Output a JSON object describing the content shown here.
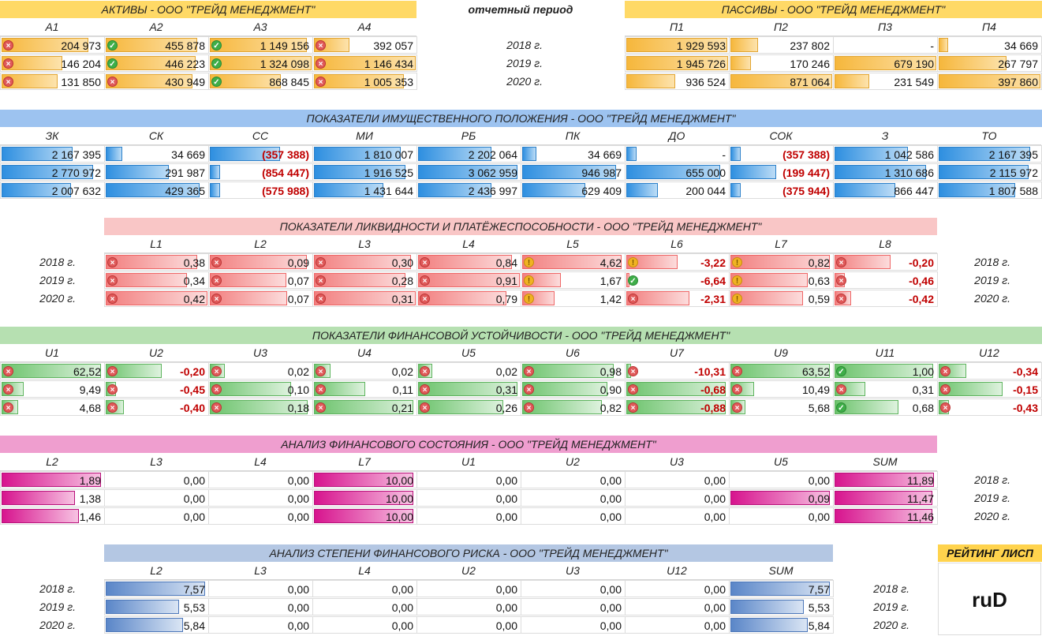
{
  "period_label": "отчетный период",
  "years": [
    "2018 г.",
    "2019 г.",
    "2020 г."
  ],
  "assets": {
    "title": "АКТИВЫ - ООО \"ТРЕЙД МЕНЕДЖМЕНТ\"",
    "headers": [
      "А1",
      "А2",
      "А3",
      "А4"
    ],
    "rows": [
      [
        {
          "v": "204 973",
          "f": 0.85,
          "i": "x"
        },
        {
          "v": "455 878",
          "f": 0.9,
          "i": "ok"
        },
        {
          "v": "1 149 156",
          "f": 0.95,
          "i": "ok"
        },
        {
          "v": "392 057",
          "f": 0.35,
          "i": "x"
        }
      ],
      [
        {
          "v": "146 204",
          "f": 0.6,
          "i": "x"
        },
        {
          "v": "446 223",
          "f": 0.88,
          "i": "ok"
        },
        {
          "v": "1 324 098",
          "f": 1.0,
          "i": "ok"
        },
        {
          "v": "1 146 434",
          "f": 1.0,
          "i": "x"
        }
      ],
      [
        {
          "v": "131 850",
          "f": 0.55,
          "i": "x"
        },
        {
          "v": "430 949",
          "f": 0.85,
          "i": "x"
        },
        {
          "v": "868 845",
          "f": 0.7,
          "i": "ok"
        },
        {
          "v": "1 005 353",
          "f": 0.88,
          "i": "x"
        }
      ]
    ]
  },
  "liabilities": {
    "title": "ПАССИВЫ - ООО \"ТРЕЙД МЕНЕДЖМЕНТ\"",
    "headers": [
      "П1",
      "П2",
      "П3",
      "П4"
    ],
    "rows": [
      [
        {
          "v": "1 929 593",
          "f": 0.99
        },
        {
          "v": "237 802",
          "f": 0.27
        },
        {
          "v": "-",
          "f": 0
        },
        {
          "v": "34 669",
          "f": 0.09
        }
      ],
      [
        {
          "v": "1 945 726",
          "f": 1.0
        },
        {
          "v": "170 246",
          "f": 0.2
        },
        {
          "v": "679 190",
          "f": 1.0
        },
        {
          "v": "267 797",
          "f": 0.67
        }
      ],
      [
        {
          "v": "936 524",
          "f": 0.48
        },
        {
          "v": "871 064",
          "f": 1.0
        },
        {
          "v": "231 549",
          "f": 0.34
        },
        {
          "v": "397 860",
          "f": 1.0
        }
      ]
    ]
  },
  "property": {
    "title": "ПОКАЗАТЕЛИ ИМУЩЕСТВЕННОГО ПОЛОЖЕНИЯ - ООО \"ТРЕЙД МЕНЕДЖМЕНТ\"",
    "headers": [
      "ЗК",
      "СК",
      "СС",
      "МИ",
      "РБ",
      "ПК",
      "ДО",
      "СОК",
      "З",
      "ТО"
    ],
    "rows": [
      [
        {
          "v": "2 167 395",
          "f": 0.7
        },
        {
          "v": "34 669",
          "f": 0.16
        },
        {
          "v": "(357 388)",
          "f": 0.69,
          "neg": true
        },
        {
          "v": "1 810 007",
          "f": 0.85
        },
        {
          "v": "2 202 064",
          "f": 0.72
        },
        {
          "v": "34 669",
          "f": 0.14
        },
        {
          "v": "-",
          "f": 0.1
        },
        {
          "v": "(357 388)",
          "f": 0.1,
          "neg": true
        },
        {
          "v": "1 042 586",
          "f": 0.72
        },
        {
          "v": "2 167 395",
          "f": 0.9
        }
      ],
      [
        {
          "v": "2 770 972",
          "f": 0.9
        },
        {
          "v": "291 987",
          "f": 0.62
        },
        {
          "v": "(854 447)",
          "f": 0.1,
          "neg": true
        },
        {
          "v": "1 916 525",
          "f": 0.9
        },
        {
          "v": "3 062 959",
          "f": 0.98
        },
        {
          "v": "946 987",
          "f": 0.92
        },
        {
          "v": "655 000",
          "f": 0.92
        },
        {
          "v": "(199 447)",
          "f": 0.45,
          "neg": true
        },
        {
          "v": "1 310 686",
          "f": 0.9
        },
        {
          "v": "2 115 972",
          "f": 0.88
        }
      ],
      [
        {
          "v": "2 007 632",
          "f": 0.68
        },
        {
          "v": "429 365",
          "f": 0.92
        },
        {
          "v": "(575 988)",
          "f": 0.1,
          "neg": true
        },
        {
          "v": "1 431 644",
          "f": 0.68
        },
        {
          "v": "2 436 997",
          "f": 0.72
        },
        {
          "v": "629 409",
          "f": 0.62
        },
        {
          "v": "200 044",
          "f": 0.31
        },
        {
          "v": "(375 944)",
          "f": 0.1,
          "neg": true
        },
        {
          "v": "866 447",
          "f": 0.6
        },
        {
          "v": "1 807 588",
          "f": 0.75
        }
      ]
    ]
  },
  "liquidity": {
    "title": "ПОКАЗАТЕЛИ ЛИКВИДНОСТИ И ПЛАТЁЖЕСПОСОБНОСТИ - ООО \"ТРЕЙД МЕНЕДЖМЕНТ\"",
    "headers": [
      "L1",
      "L2",
      "L3",
      "L4",
      "L5",
      "L6",
      "L7",
      "L8"
    ],
    "rows": [
      [
        {
          "v": "0,38",
          "f": 0.9,
          "i": "x"
        },
        {
          "v": "0,09",
          "f": 0.95,
          "i": "x"
        },
        {
          "v": "0,30",
          "f": 0.95,
          "i": "x"
        },
        {
          "v": "0,84",
          "f": 0.92,
          "i": "x"
        },
        {
          "v": "4,62",
          "f": 0.98,
          "i": "warn"
        },
        {
          "v": "-3,22",
          "f": 0.5,
          "i": "warn",
          "neg": true
        },
        {
          "v": "0,82",
          "f": 0.98,
          "i": "warn"
        },
        {
          "v": "-0,20",
          "f": 0.55,
          "i": "x",
          "neg": true
        }
      ],
      [
        {
          "v": "0,34",
          "f": 0.8,
          "i": "x"
        },
        {
          "v": "0,07",
          "f": 0.75,
          "i": "x"
        },
        {
          "v": "0,28",
          "f": 0.9,
          "i": "x"
        },
        {
          "v": "0,91",
          "f": 1.0,
          "i": "x"
        },
        {
          "v": "1,67",
          "f": 0.38,
          "i": "warn"
        },
        {
          "v": "-6,64",
          "f": 0.03,
          "i": "ok",
          "neg": true
        },
        {
          "v": "0,63",
          "f": 0.76,
          "i": "warn"
        },
        {
          "v": "-0,46",
          "f": 0.1,
          "i": "x",
          "neg": true
        }
      ],
      [
        {
          "v": "0,42",
          "f": 1.0,
          "i": "x"
        },
        {
          "v": "0,07",
          "f": 0.76,
          "i": "x"
        },
        {
          "v": "0,31",
          "f": 1.0,
          "i": "x"
        },
        {
          "v": "0,79",
          "f": 0.87,
          "i": "x"
        },
        {
          "v": "1,42",
          "f": 0.32,
          "i": "warn"
        },
        {
          "v": "-2,31",
          "f": 0.62,
          "i": "x",
          "neg": true
        },
        {
          "v": "0,59",
          "f": 0.71,
          "i": "warn"
        },
        {
          "v": "-0,42",
          "f": 0.16,
          "i": "x",
          "neg": true
        }
      ]
    ]
  },
  "stability": {
    "title": "ПОКАЗАТЕЛИ ФИНАНСОВОЙ УСТОЙЧИВОСТИ - ООО \"ТРЕЙД МЕНЕДЖМЕНТ\"",
    "headers": [
      "U1",
      "U2",
      "U3",
      "U4",
      "U5",
      "U6",
      "U7",
      "U9",
      "U11",
      "U12"
    ],
    "rows": [
      [
        {
          "v": "62,52",
          "f": 0.98,
          "i": "x"
        },
        {
          "v": "-0,20",
          "f": 0.55,
          "i": "x",
          "neg": true
        },
        {
          "v": "0,02",
          "f": 0.15,
          "i": "x"
        },
        {
          "v": "0,02",
          "f": 0.16,
          "i": "x"
        },
        {
          "v": "0,02",
          "f": 0.14,
          "i": "x"
        },
        {
          "v": "0,98",
          "f": 0.9,
          "i": "x"
        },
        {
          "v": "-10,31",
          "f": 0.05,
          "i": "x",
          "neg": true
        },
        {
          "v": "63,52",
          "f": 0.98,
          "i": "x"
        },
        {
          "v": "1,00",
          "f": 0.97,
          "i": "ok"
        },
        {
          "v": "-0,34",
          "f": 0.27,
          "i": "x",
          "neg": true
        }
      ],
      [
        {
          "v": "9,49",
          "f": 0.22,
          "i": "x"
        },
        {
          "v": "-0,45",
          "f": 0.1,
          "i": "x",
          "neg": true
        },
        {
          "v": "0,10",
          "f": 0.8,
          "i": "x"
        },
        {
          "v": "0,11",
          "f": 0.5,
          "i": "x"
        },
        {
          "v": "0,31",
          "f": 0.98,
          "i": "x"
        },
        {
          "v": "0,90",
          "f": 0.84,
          "i": "x"
        },
        {
          "v": "-0,68",
          "f": 0.98,
          "i": "x",
          "neg": true
        },
        {
          "v": "10,49",
          "f": 0.23,
          "i": "x"
        },
        {
          "v": "0,31",
          "f": 0.3,
          "i": "x"
        },
        {
          "v": "-0,15",
          "f": 0.63,
          "i": "x",
          "neg": true
        }
      ],
      [
        {
          "v": "4,68",
          "f": 0.16,
          "i": "x"
        },
        {
          "v": "-0,40",
          "f": 0.18,
          "i": "x",
          "neg": true
        },
        {
          "v": "0,18",
          "f": 0.96,
          "i": "x"
        },
        {
          "v": "0,21",
          "f": 0.98,
          "i": "x"
        },
        {
          "v": "0,26",
          "f": 0.84,
          "i": "x"
        },
        {
          "v": "0,82",
          "f": 0.78,
          "i": "x"
        },
        {
          "v": "-0,88",
          "f": 0.98,
          "i": "x",
          "neg": true
        },
        {
          "v": "5,68",
          "f": 0.15,
          "i": "x"
        },
        {
          "v": "0,68",
          "f": 0.63,
          "i": "ok"
        },
        {
          "v": "-0,43",
          "f": 0.1,
          "i": "x",
          "neg": true
        }
      ]
    ]
  },
  "fin_state": {
    "title": "АНАЛИЗ ФИНАНСОВОГО СОСТОЯНИЯ - ООО \"ТРЕЙД МЕНЕДЖМЕНТ\"",
    "headers": [
      "L2",
      "L3",
      "L4",
      "L7",
      "U1",
      "U2",
      "U3",
      "U5",
      "SUM"
    ],
    "rows": [
      [
        {
          "v": "1,89",
          "f": 0.98
        },
        {
          "v": "0,00",
          "f": 0
        },
        {
          "v": "0,00",
          "f": 0
        },
        {
          "v": "10,00",
          "f": 0.98
        },
        {
          "v": "0,00",
          "f": 0
        },
        {
          "v": "0,00",
          "f": 0
        },
        {
          "v": "0,00",
          "f": 0
        },
        {
          "v": "0,00",
          "f": 0
        },
        {
          "v": "11,89",
          "f": 0.98
        }
      ],
      [
        {
          "v": "1,38",
          "f": 0.72
        },
        {
          "v": "0,00",
          "f": 0
        },
        {
          "v": "0,00",
          "f": 0
        },
        {
          "v": "10,00",
          "f": 0.98
        },
        {
          "v": "0,00",
          "f": 0
        },
        {
          "v": "0,00",
          "f": 0
        },
        {
          "v": "0,00",
          "f": 0
        },
        {
          "v": "0,09",
          "f": 0.98
        },
        {
          "v": "11,47",
          "f": 0.96
        }
      ],
      [
        {
          "v": "1,46",
          "f": 0.76
        },
        {
          "v": "0,00",
          "f": 0
        },
        {
          "v": "0,00",
          "f": 0
        },
        {
          "v": "10,00",
          "f": 0.98
        },
        {
          "v": "0,00",
          "f": 0
        },
        {
          "v": "0,00",
          "f": 0
        },
        {
          "v": "0,00",
          "f": 0
        },
        {
          "v": "0,00",
          "f": 0
        },
        {
          "v": "11,46",
          "f": 0.96
        }
      ]
    ]
  },
  "fin_risk": {
    "title": "АНАЛИЗ СТЕПЕНИ ФИНАНСОВОГО РИСКА - ООО \"ТРЕЙД МЕНЕДЖМЕНТ\"",
    "headers": [
      "L2",
      "L3",
      "L4",
      "U2",
      "U3",
      "U12",
      "SUM"
    ],
    "rows": [
      [
        {
          "v": "7,57",
          "f": 0.98
        },
        {
          "v": "0,00",
          "f": 0
        },
        {
          "v": "0,00",
          "f": 0
        },
        {
          "v": "0,00",
          "f": 0
        },
        {
          "v": "0,00",
          "f": 0
        },
        {
          "v": "0,00",
          "f": 0
        },
        {
          "v": "7,57",
          "f": 0.98
        }
      ],
      [
        {
          "v": "5,53",
          "f": 0.72
        },
        {
          "v": "0,00",
          "f": 0
        },
        {
          "v": "0,00",
          "f": 0
        },
        {
          "v": "0,00",
          "f": 0
        },
        {
          "v": "0,00",
          "f": 0
        },
        {
          "v": "0,00",
          "f": 0
        },
        {
          "v": "5,53",
          "f": 0.72
        }
      ],
      [
        {
          "v": "5,84",
          "f": 0.76
        },
        {
          "v": "0,00",
          "f": 0
        },
        {
          "v": "0,00",
          "f": 0
        },
        {
          "v": "0,00",
          "f": 0
        },
        {
          "v": "0,00",
          "f": 0
        },
        {
          "v": "0,00",
          "f": 0
        },
        {
          "v": "5,84",
          "f": 0.76
        }
      ]
    ]
  },
  "rating": {
    "title": "РЕЙТИНГ ЛИСП",
    "value": "ruD"
  },
  "colors": {
    "orange": "#f6b73c",
    "blue": "#2e8fe0",
    "red": "#f27f7f",
    "green": "#6cc36c",
    "pink": "#d7148e",
    "steel": "#5a86c8"
  }
}
